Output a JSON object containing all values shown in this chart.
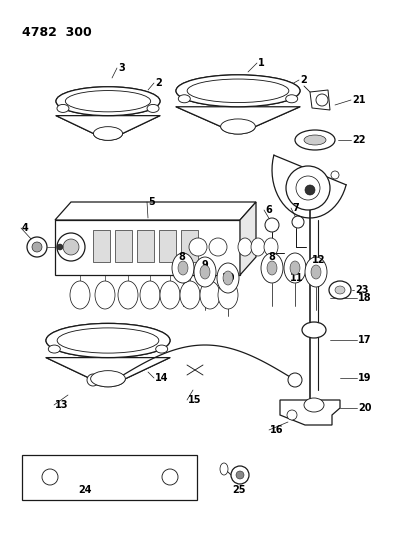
{
  "title": "4782  300",
  "bg_color": "#ffffff",
  "lc": "#1a1a1a",
  "figw": 4.08,
  "figh": 5.33,
  "dpi": 100
}
